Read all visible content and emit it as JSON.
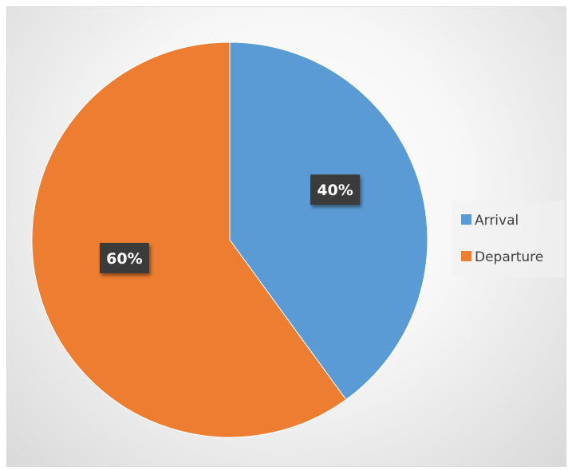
{
  "chart_data": {
    "type": "pie",
    "categories": [
      "Arrival",
      "Departure"
    ],
    "values": [
      40,
      60
    ],
    "data_labels": [
      "40%",
      "60%"
    ],
    "colors": [
      "#5b9bd5",
      "#ed7d31"
    ],
    "title": "",
    "legend_position": "right",
    "start_angle": "top, clockwise"
  }
}
